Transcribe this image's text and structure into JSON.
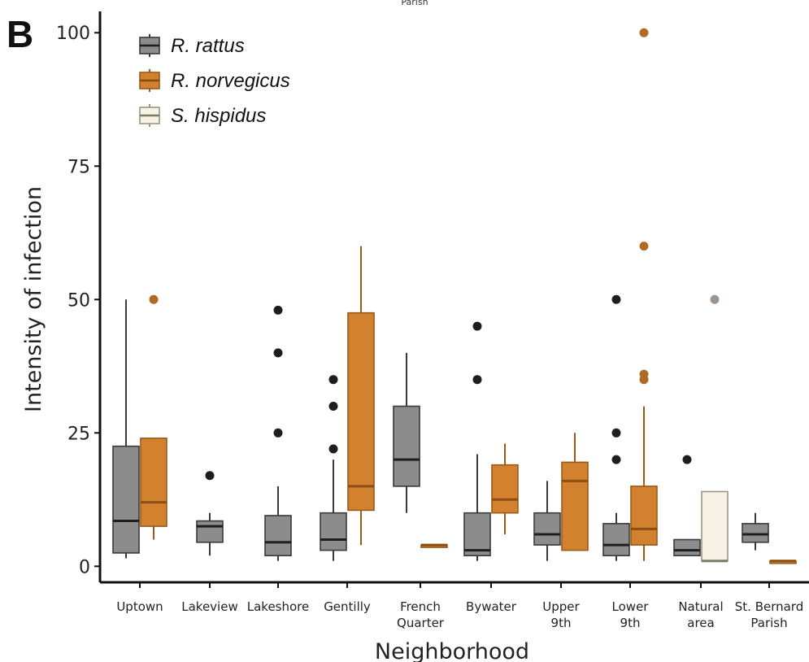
{
  "panel_label": "B",
  "top_fragment": "Parish",
  "colors": {
    "R. rattus": {
      "fill": "#8c8c8c",
      "stroke": "#3a3a3a",
      "median": "#1e1e1e",
      "outlier": "#1e1e1e"
    },
    "R. norvegicus": {
      "fill": "#d2822e",
      "stroke": "#9a5a18",
      "median": "#8a4e12",
      "outlier": "#b06a28"
    },
    "S. hispidus": {
      "fill": "#f7f2e6",
      "stroke": "#9c9480",
      "median": "#7d7a68",
      "outlier": "#a09488"
    }
  },
  "chart_data": {
    "type": "box",
    "xlabel": "Neighborhood",
    "ylabel": "Intensity of infection",
    "ylim": [
      -3,
      104
    ],
    "yticks": [
      0,
      25,
      50,
      75,
      100
    ],
    "ytick_labels": [
      "0",
      "25",
      "50",
      "75",
      "100"
    ],
    "categories": [
      {
        "key": "uptown",
        "label": [
          "Uptown"
        ]
      },
      {
        "key": "lakeview",
        "label": [
          "Lakeview"
        ]
      },
      {
        "key": "lakeshore",
        "label": [
          "Lakeshore"
        ]
      },
      {
        "key": "gentilly",
        "label": [
          "Gentilly"
        ]
      },
      {
        "key": "french",
        "label": [
          "French",
          "Quarter"
        ]
      },
      {
        "key": "bywater",
        "label": [
          "Bywater"
        ]
      },
      {
        "key": "upper9",
        "label": [
          "Upper",
          "9th"
        ]
      },
      {
        "key": "lower9",
        "label": [
          "Lower",
          "9th"
        ]
      },
      {
        "key": "natural",
        "label": [
          "Natural",
          "area"
        ]
      },
      {
        "key": "stbernard",
        "label": [
          "St. Bernard",
          "Parish"
        ]
      }
    ],
    "legend": [
      "R. rattus",
      "R. norvegicus",
      "S. hispidus"
    ],
    "legend_position": "top-left",
    "grid": false,
    "boxes": [
      {
        "category": 0,
        "species": "R. rattus",
        "min": 1.5,
        "q1": 2.5,
        "median": 8.5,
        "q3": 22.5,
        "max": 50,
        "outliers": []
      },
      {
        "category": 0,
        "species": "R. norvegicus",
        "min": 5,
        "q1": 7.5,
        "median": 12,
        "q3": 24,
        "max": 24,
        "outliers": [
          50
        ]
      },
      {
        "category": 1,
        "species": "R. rattus",
        "min": 2,
        "q1": 4.5,
        "median": 7.5,
        "q3": 8.5,
        "max": 10,
        "outliers": [
          17
        ]
      },
      {
        "category": 2,
        "species": "R. rattus",
        "min": 1,
        "q1": 2,
        "median": 4.5,
        "q3": 9.5,
        "max": 15,
        "outliers": [
          25,
          40,
          48
        ]
      },
      {
        "category": 3,
        "species": "R. rattus",
        "min": 1,
        "q1": 3,
        "median": 5,
        "q3": 10,
        "max": 20,
        "outliers": [
          22,
          30,
          35
        ]
      },
      {
        "category": 3,
        "species": "R. norvegicus",
        "min": 4,
        "q1": 10.5,
        "median": 15,
        "q3": 47.5,
        "max": 60,
        "outliers": []
      },
      {
        "category": 4,
        "species": "R. rattus",
        "min": 10,
        "q1": 15,
        "median": 20,
        "q3": 30,
        "max": 40,
        "outliers": []
      },
      {
        "category": 4,
        "species": "R. norvegicus",
        "min": 4,
        "q1": 4,
        "median": 4,
        "q3": 4,
        "max": 4,
        "outliers": []
      },
      {
        "category": 5,
        "species": "R. rattus",
        "min": 1,
        "q1": 2,
        "median": 3,
        "q3": 10,
        "max": 21,
        "outliers": [
          35,
          45
        ]
      },
      {
        "category": 5,
        "species": "R. norvegicus",
        "min": 6,
        "q1": 10,
        "median": 12.5,
        "q3": 19,
        "max": 23,
        "outliers": []
      },
      {
        "category": 6,
        "species": "R. rattus",
        "min": 1,
        "q1": 4,
        "median": 6,
        "q3": 10,
        "max": 16,
        "outliers": []
      },
      {
        "category": 6,
        "species": "R. norvegicus",
        "min": 3,
        "q1": 3,
        "median": 16,
        "q3": 19.5,
        "max": 25,
        "outliers": []
      },
      {
        "category": 7,
        "species": "R. rattus",
        "min": 1,
        "q1": 2,
        "median": 4,
        "q3": 8,
        "max": 10,
        "outliers": [
          20,
          25,
          50
        ]
      },
      {
        "category": 7,
        "species": "R. norvegicus",
        "min": 1,
        "q1": 4,
        "median": 7,
        "q3": 15,
        "max": 30,
        "outliers": [
          35,
          36,
          60,
          100
        ]
      },
      {
        "category": 8,
        "species": "R. rattus",
        "min": 2,
        "q1": 2,
        "median": 3,
        "q3": 5,
        "max": 5,
        "outliers": [
          20
        ]
      },
      {
        "category": 8,
        "species": "S. hispidus",
        "min": 1,
        "q1": 1,
        "median": 1,
        "q3": 14,
        "max": 14,
        "outliers": [
          50
        ]
      },
      {
        "category": 9,
        "species": "R. rattus",
        "min": 3,
        "q1": 4.5,
        "median": 6,
        "q3": 8,
        "max": 10,
        "outliers": []
      },
      {
        "category": 9,
        "species": "R. norvegicus",
        "min": 1,
        "q1": 1,
        "median": 1,
        "q3": 1,
        "max": 1,
        "outliers": []
      }
    ]
  }
}
